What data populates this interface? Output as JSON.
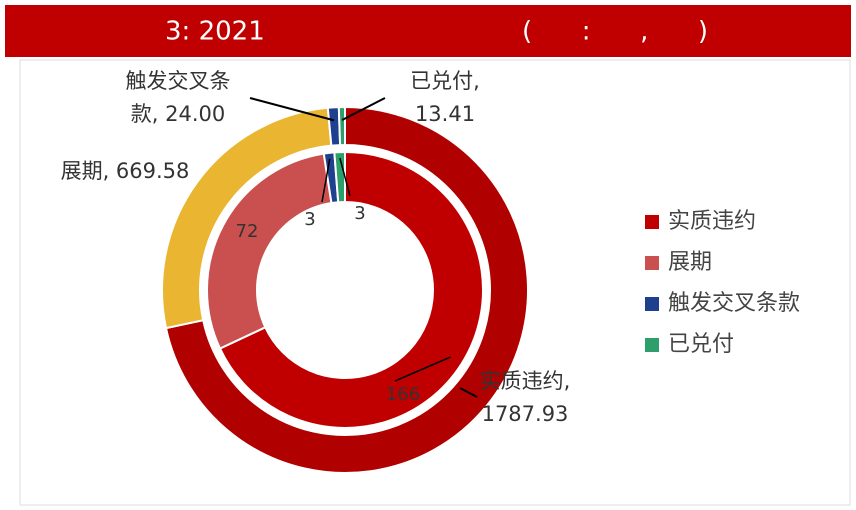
{
  "header": {
    "title": "3: 2021",
    "note": "(      :      ,      )"
  },
  "chart_data": {
    "type": "nested-donut",
    "categories": [
      "实质违约",
      "展期",
      "触发交叉条款",
      "已兑付"
    ],
    "colors": [
      "#c00000",
      "#c9504f",
      "#1f3f8f",
      "#2e9e6a"
    ],
    "rings": [
      {
        "values": [
          166,
          72,
          3,
          3
        ],
        "colors": [
          "#c00000",
          "#c9504f",
          "#1f3f8f",
          "#2e9e6a"
        ]
      },
      {
        "values": [
          1787.93,
          669.58,
          24,
          13.41
        ],
        "colors": [
          "#b00000",
          "#eab530",
          "#1f3f8f",
          "#2e9e6a"
        ],
        "value_labels": [
          "实质违约, 1787.93",
          "展期, 669.58",
          "触发交叉条款, 24.00",
          "已兑付, 13.41"
        ]
      }
    ],
    "legend": "right"
  }
}
